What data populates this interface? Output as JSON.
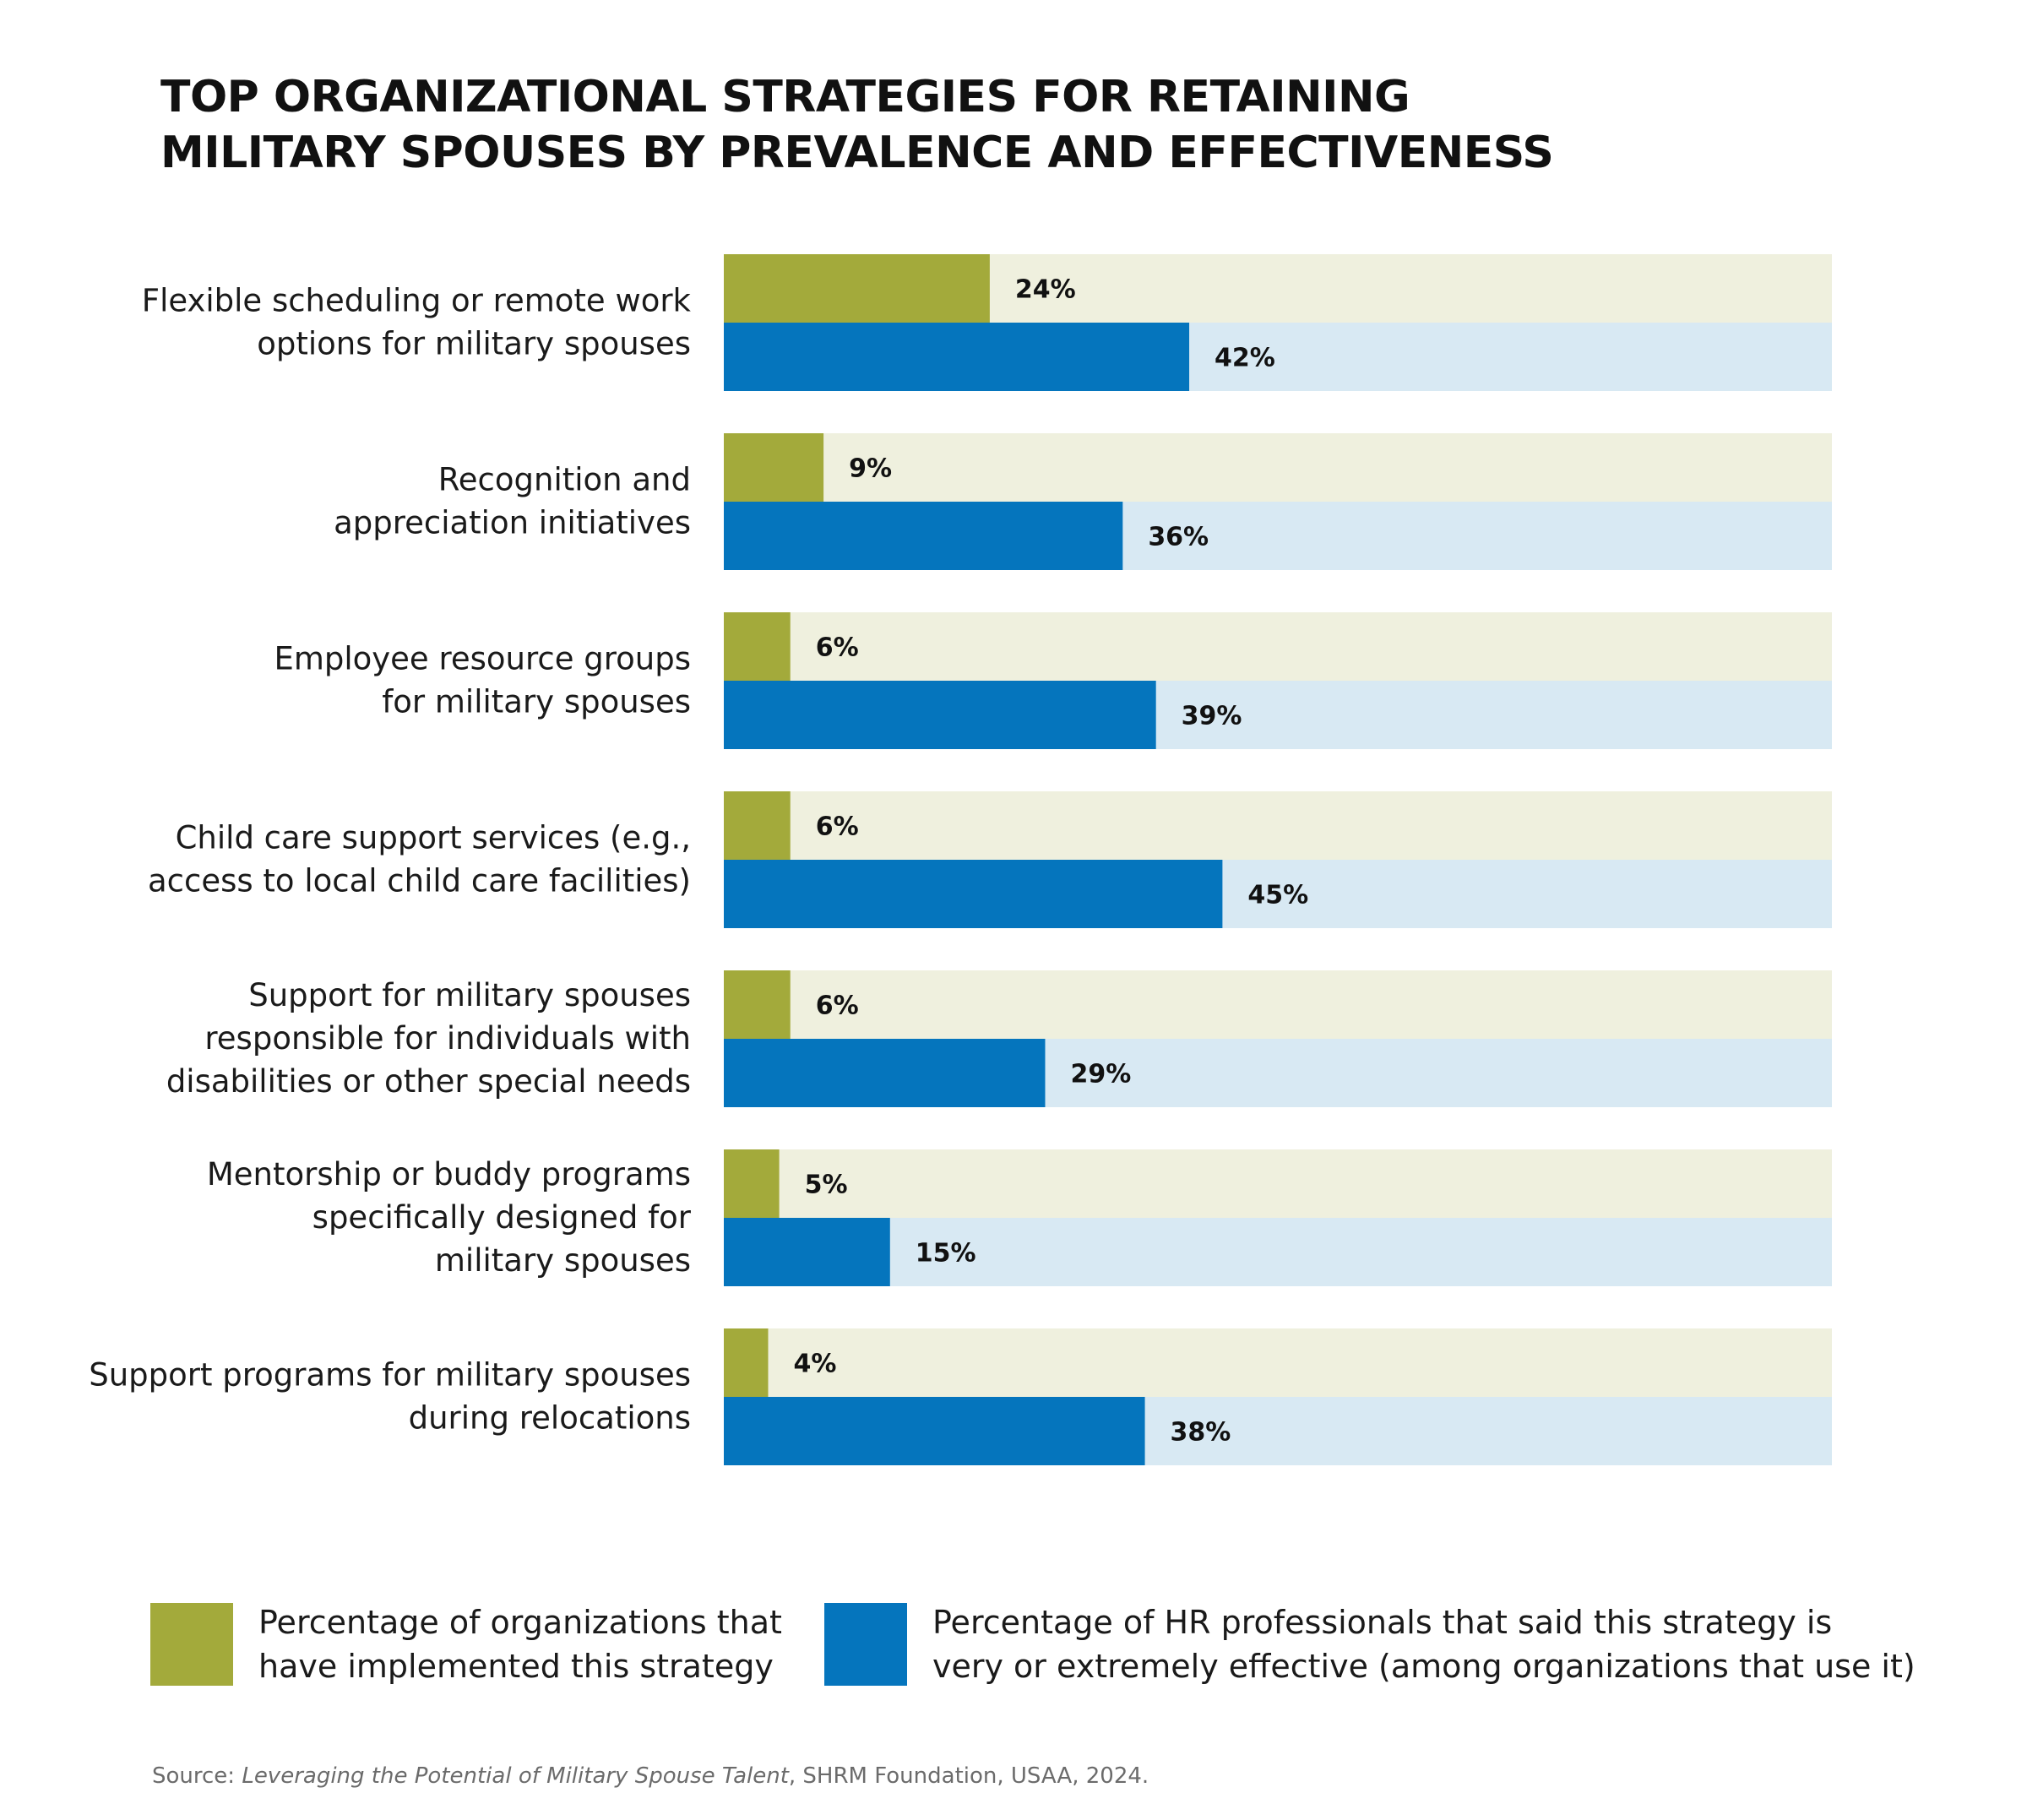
{
  "chart_data": {
    "type": "bar",
    "orientation": "horizontal",
    "title_lines": [
      "TOP ORGANIZATIONAL STRATEGIES FOR RETAINING",
      "MILITARY SPOUSES BY PREVALENCE AND EFFECTIVENESS"
    ],
    "categories": [
      [
        "Flexible scheduling or remote work",
        "options for military spouses"
      ],
      [
        "Recognition and",
        "appreciation initiatives"
      ],
      [
        "Employee resource groups",
        "for military spouses"
      ],
      [
        "Child care support services (e.g.,",
        "access to local child care facilities)"
      ],
      [
        "Support for military spouses",
        "responsible for individuals with",
        "disabilities or other special needs"
      ],
      [
        "Mentorship or buddy programs",
        "specifically designed for",
        "military spouses"
      ],
      [
        "Support programs for military spouses",
        "during relocations"
      ]
    ],
    "series": [
      {
        "name": "implemented",
        "legend_lines": [
          "Percentage of organizations that",
          "have implemented this strategy"
        ],
        "values": [
          24,
          9,
          6,
          6,
          6,
          5,
          4
        ],
        "labels": [
          "24%",
          "9%",
          "6%",
          "6%",
          "6%",
          "5%",
          "4%"
        ],
        "color": "#a3aa3b",
        "track_color": "#eff0de"
      },
      {
        "name": "effective",
        "legend_lines": [
          "Percentage of HR professionals that said this strategy is",
          "very or extremely effective (among organizations that use it)"
        ],
        "values": [
          42,
          36,
          39,
          45,
          29,
          15,
          38
        ],
        "labels": [
          "42%",
          "36%",
          "39%",
          "45%",
          "29%",
          "15%",
          "38%"
        ],
        "color": "#0575bd",
        "track_color": "#d8e9f3"
      }
    ],
    "xlim": [
      0,
      100
    ],
    "source": {
      "prefix": "Source: ",
      "title": "Leveraging the Potential of Military Spouse Talent",
      "suffix": ", SHRM Foundation, USAA, 2024."
    }
  }
}
